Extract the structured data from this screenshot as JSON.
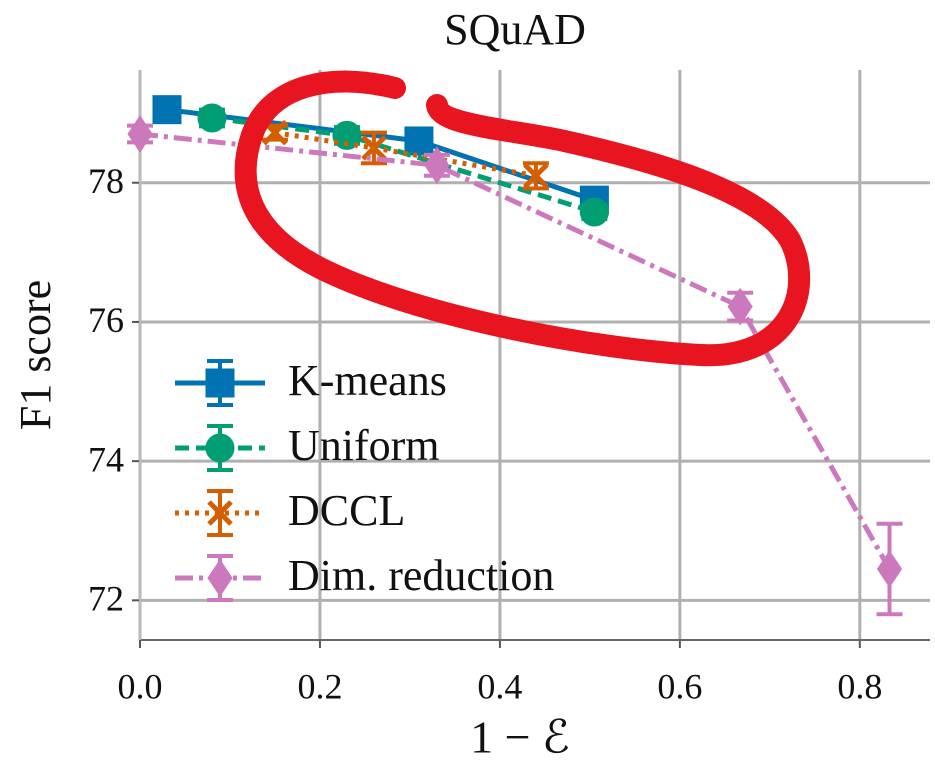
{
  "chart_data": {
    "type": "line",
    "title": "SQuAD",
    "x_label": "1 − ℰ",
    "y_label": "F1 score",
    "xlim": [
      0,
      0.878
    ],
    "ylim": [
      71.43,
      79.62
    ],
    "xticks": [
      {
        "value": 0,
        "label": "0.0"
      },
      0.2,
      0.4,
      0.6,
      0.8
    ],
    "yticks": [
      72,
      74,
      76,
      78
    ],
    "grid": true,
    "legend": "lower left",
    "series": [
      {
        "name": "K-means",
        "color": "#0173b2",
        "linestyle": "solid",
        "marker": "square",
        "x": [
          0.03,
          0.31,
          0.505
        ],
        "values": [
          79.05,
          78.6,
          77.75
        ],
        "errors": [
          0.15,
          0.15,
          0.12
        ]
      },
      {
        "name": "Uniform",
        "color": "#029e73",
        "linestyle": "dashed",
        "marker": "circle",
        "x": [
          0.08,
          0.23,
          0.505
        ],
        "values": [
          78.93,
          78.68,
          77.58
        ],
        "errors": [
          0.12,
          0.12,
          0.1
        ]
      },
      {
        "name": "DCCL",
        "color": "#d55e00",
        "linestyle": "dotted",
        "marker": "x",
        "x": [
          0.15,
          0.26,
          0.44
        ],
        "values": [
          78.72,
          78.5,
          78.1
        ],
        "errors": [
          0.1,
          0.22,
          0.18
        ]
      },
      {
        "name": "Dim. reduction",
        "color": "#cc78bc",
        "linestyle": "dashdot",
        "marker": "diamond",
        "x": [
          0.0,
          0.33,
          0.667,
          0.833
        ],
        "values": [
          78.7,
          78.25,
          76.22,
          72.45
        ],
        "errors": [
          0.12,
          0.15,
          0.2,
          0.65
        ]
      }
    ]
  }
}
